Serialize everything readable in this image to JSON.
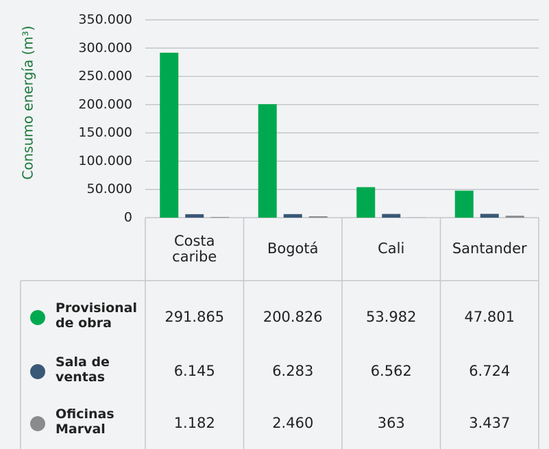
{
  "chart_data": {
    "type": "bar",
    "ylabel": "Consumo energía (m³)",
    "categories": [
      "Costa caribe",
      "Bogotá",
      "Cali",
      "Santander"
    ],
    "series": [
      {
        "name": "Provisional de obra",
        "color": "#00a94f",
        "values": [
          291865,
          200826,
          53982,
          47801
        ],
        "value_labels": [
          "291.865",
          "200.826",
          "53.982",
          "47.801"
        ]
      },
      {
        "name": "Sala de ventas",
        "color": "#3a5877",
        "values": [
          6145,
          6283,
          6562,
          6724
        ],
        "value_labels": [
          "6.145",
          "6.283",
          "6.562",
          "6.724"
        ]
      },
      {
        "name": "Oficinas Marval",
        "color": "#8a8b8d",
        "values": [
          1182,
          2460,
          363,
          3437
        ],
        "value_labels": [
          "1.182",
          "2.460",
          "363",
          "3.437"
        ]
      }
    ],
    "ylim": [
      0,
      350000
    ],
    "yticks": [
      0,
      {
        "value": 50000,
        "label": "50.000"
      },
      {
        "value": 100000,
        "label": "100.000"
      },
      {
        "value": 150000,
        "label": "150.000"
      },
      {
        "value": 200000,
        "label": "200.000"
      },
      {
        "value": 250000,
        "label": "250.000"
      },
      {
        "value": 300000,
        "label": "300.000"
      },
      {
        "value": 350000,
        "label": "350.000"
      }
    ],
    "grid": true
  }
}
